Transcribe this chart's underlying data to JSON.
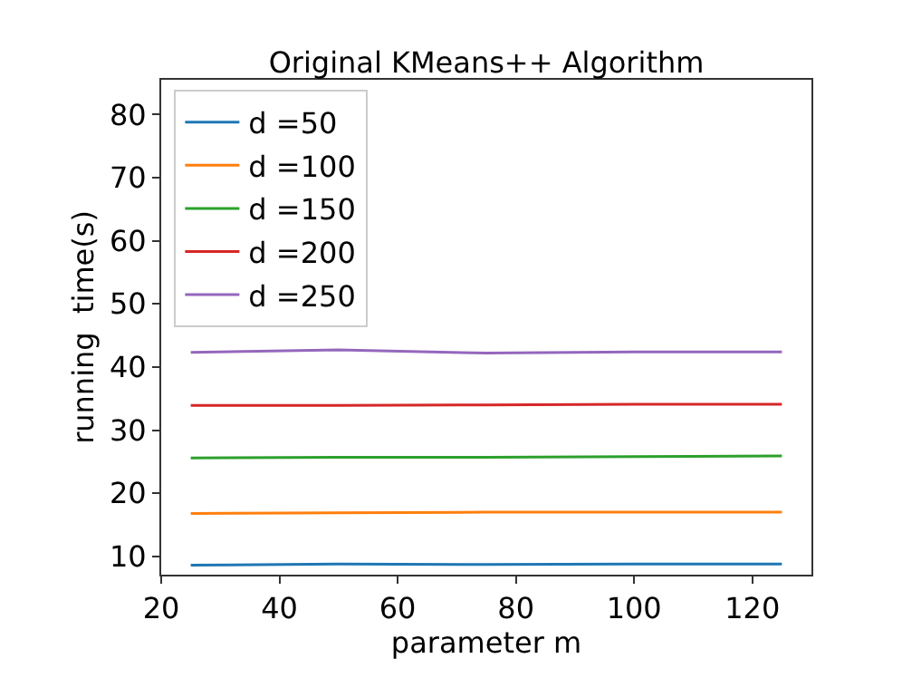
{
  "chart_data": {
    "type": "line",
    "title": "Original KMeans++ Algorithm",
    "xlabel": "parameter m",
    "ylabel": "running  time(s)",
    "x": [
      25,
      50,
      75,
      100,
      125
    ],
    "series": [
      {
        "name": "d =50",
        "color": "#1f77b4",
        "values": [
          8.6,
          8.8,
          8.7,
          8.8,
          8.8
        ]
      },
      {
        "name": "d =100",
        "color": "#ff7f0e",
        "values": [
          16.8,
          16.9,
          17.0,
          17.0,
          17.0
        ]
      },
      {
        "name": "d =150",
        "color": "#2ca02c",
        "values": [
          25.6,
          25.7,
          25.7,
          25.8,
          25.9
        ]
      },
      {
        "name": "d =200",
        "color": "#d62728",
        "values": [
          33.9,
          33.9,
          34.0,
          34.1,
          34.1
        ]
      },
      {
        "name": "d =250",
        "color": "#9467bd",
        "values": [
          42.3,
          42.7,
          42.2,
          42.4,
          42.4
        ]
      }
    ],
    "xlim": [
      20,
      130
    ],
    "xticks": [
      20,
      40,
      60,
      80,
      100,
      120
    ],
    "ylim": [
      7.1,
      85.5
    ],
    "yticks": [
      10,
      20,
      30,
      40,
      50,
      60,
      70,
      80
    ],
    "legend": "top left",
    "marker": "none",
    "line_style": "solid"
  }
}
